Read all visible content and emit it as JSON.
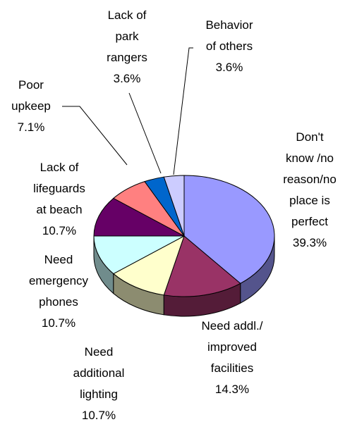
{
  "chart_data": {
    "type": "pie",
    "style": "3d",
    "title": "",
    "slices": [
      {
        "label": "Don't know /no reason/no place is perfect",
        "lines": [
          "Don't",
          "know /no",
          "reason/no",
          "place is",
          "perfect",
          "39.3%"
        ],
        "value": 39.3,
        "color": "#9999FF"
      },
      {
        "label": "Need addl./ improved facilities",
        "lines": [
          "Need addl./",
          "improved",
          "facilities",
          "14.3%"
        ],
        "value": 14.3,
        "color": "#993366"
      },
      {
        "label": "Need additional lighting",
        "lines": [
          "Need",
          "additional",
          "lighting",
          "10.7%"
        ],
        "value": 10.7,
        "color": "#FFFFCC"
      },
      {
        "label": "Need emergency phones",
        "lines": [
          "Need",
          "emergency",
          "phones",
          "10.7%"
        ],
        "value": 10.7,
        "color": "#CCFFFF"
      },
      {
        "label": "Lack of lifeguards at beach",
        "lines": [
          "Lack of",
          "lifeguards",
          "at beach",
          "10.7%"
        ],
        "value": 10.7,
        "color": "#660066"
      },
      {
        "label": "Poor upkeep",
        "lines": [
          "Poor",
          "upkeep",
          "7.1%"
        ],
        "value": 7.1,
        "color": "#FF8080"
      },
      {
        "label": "Lack of park rangers",
        "lines": [
          "Lack of",
          "park",
          "rangers",
          "3.6%"
        ],
        "value": 3.6,
        "color": "#0066CC"
      },
      {
        "label": "Behavior of others",
        "lines": [
          "Behavior",
          "of others",
          "3.6%"
        ],
        "value": 3.6,
        "color": "#CCCCFF"
      }
    ]
  }
}
